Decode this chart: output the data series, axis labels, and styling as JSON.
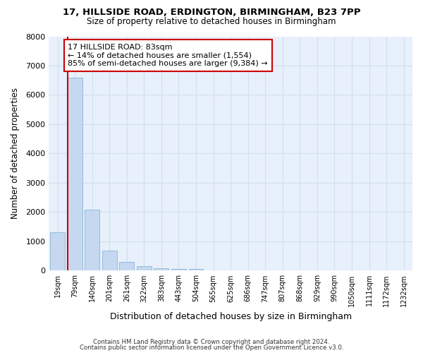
{
  "title1": "17, HILLSIDE ROAD, ERDINGTON, BIRMINGHAM, B23 7PP",
  "title2": "Size of property relative to detached houses in Birmingham",
  "xlabel": "Distribution of detached houses by size in Birmingham",
  "ylabel": "Number of detached properties",
  "categories": [
    "19sqm",
    "79sqm",
    "140sqm",
    "201sqm",
    "261sqm",
    "322sqm",
    "383sqm",
    "443sqm",
    "504sqm",
    "565sqm",
    "625sqm",
    "686sqm",
    "747sqm",
    "807sqm",
    "868sqm",
    "929sqm",
    "990sqm",
    "1050sqm",
    "1111sqm",
    "1172sqm",
    "1232sqm"
  ],
  "bar_heights": [
    1300,
    6600,
    2080,
    680,
    295,
    140,
    90,
    60,
    60,
    0,
    0,
    0,
    0,
    0,
    0,
    0,
    0,
    0,
    0,
    0,
    0
  ],
  "bar_color": "#c5d8f0",
  "bar_edge_color": "#8ab4d8",
  "vline_color": "#cc0000",
  "annotation_text": "17 HILLSIDE ROAD: 83sqm\n← 14% of detached houses are smaller (1,554)\n85% of semi-detached houses are larger (9,384) →",
  "annotation_box_facecolor": "#ffffff",
  "annotation_box_edgecolor": "#cc0000",
  "ylim": [
    0,
    8000
  ],
  "yticks": [
    0,
    1000,
    2000,
    3000,
    4000,
    5000,
    6000,
    7000,
    8000
  ],
  "grid_color": "#d0dff0",
  "bg_color": "#e8f0fb",
  "footer1": "Contains HM Land Registry data © Crown copyright and database right 2024.",
  "footer2": "Contains public sector information licensed under the Open Government Licence v3.0."
}
